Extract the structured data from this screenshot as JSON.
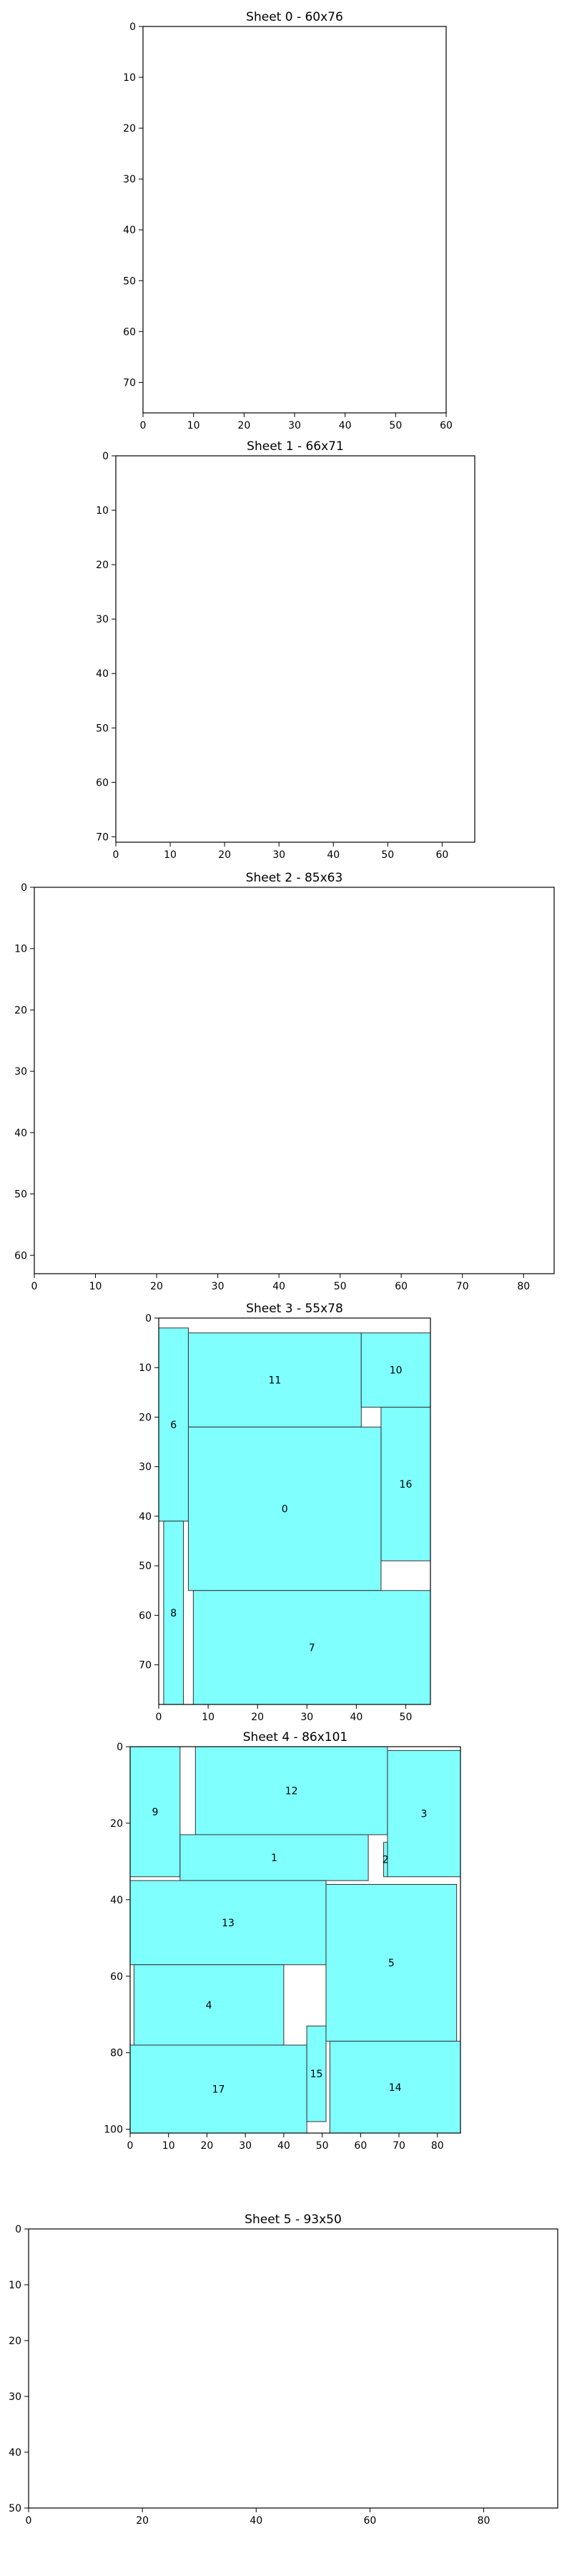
{
  "colors": {
    "piece_fill": "#80ffff",
    "piece_stroke": "#333333",
    "axes": "#000000",
    "background": "#ffffff"
  },
  "chart_data": [
    {
      "type": "rectangles",
      "title": "Sheet 0 - 60x76",
      "width": 60,
      "height": 76,
      "xticks": [
        0,
        10,
        20,
        30,
        40,
        50,
        60
      ],
      "yticks": [
        0,
        10,
        20,
        30,
        40,
        50,
        60,
        70
      ],
      "pieces": []
    },
    {
      "type": "rectangles",
      "title": "Sheet 1 - 66x71",
      "width": 66,
      "height": 71,
      "xticks": [
        0,
        10,
        20,
        30,
        40,
        50,
        60
      ],
      "yticks": [
        0,
        10,
        20,
        30,
        40,
        50,
        60,
        70
      ],
      "pieces": []
    },
    {
      "type": "rectangles",
      "title": "Sheet 2 - 85x63",
      "width": 85,
      "height": 63,
      "xticks": [
        0,
        10,
        20,
        30,
        40,
        50,
        60,
        70,
        80
      ],
      "yticks": [
        0,
        10,
        20,
        30,
        40,
        50,
        60
      ],
      "pieces": []
    },
    {
      "type": "rectangles",
      "title": "Sheet 3 - 55x78",
      "width": 55,
      "height": 78,
      "xticks": [
        0,
        10,
        20,
        30,
        40,
        50
      ],
      "yticks": [
        0,
        10,
        20,
        30,
        40,
        50,
        60,
        70
      ],
      "pieces": [
        {
          "id": "6",
          "x": 0,
          "y": 2,
          "w": 6,
          "h": 39
        },
        {
          "id": "11",
          "x": 6,
          "y": 3,
          "w": 35,
          "h": 19
        },
        {
          "id": "10",
          "x": 41,
          "y": 3,
          "w": 14,
          "h": 15
        },
        {
          "id": "16",
          "x": 45,
          "y": 18,
          "w": 10,
          "h": 31
        },
        {
          "id": "0",
          "x": 6,
          "y": 22,
          "w": 39,
          "h": 33
        },
        {
          "id": "8",
          "x": 1,
          "y": 41,
          "w": 4,
          "h": 37
        },
        {
          "id": "7",
          "x": 7,
          "y": 55,
          "w": 48,
          "h": 23
        }
      ]
    },
    {
      "type": "rectangles",
      "title": "Sheet 4 - 86x101",
      "width": 86,
      "height": 101,
      "xticks": [
        0,
        10,
        20,
        30,
        40,
        50,
        60,
        70,
        80
      ],
      "yticks": [
        0,
        20,
        40,
        60,
        80,
        100
      ],
      "pieces": [
        {
          "id": "9",
          "x": 0,
          "y": 0,
          "w": 13,
          "h": 34
        },
        {
          "id": "12",
          "x": 17,
          "y": 0,
          "w": 50,
          "h": 23
        },
        {
          "id": "3",
          "x": 67,
          "y": 1,
          "w": 19,
          "h": 33
        },
        {
          "id": "1",
          "x": 13,
          "y": 23,
          "w": 49,
          "h": 12
        },
        {
          "id": "2",
          "x": 66,
          "y": 25,
          "w": 1,
          "h": 9
        },
        {
          "id": "13",
          "x": 0,
          "y": 35,
          "w": 51,
          "h": 22
        },
        {
          "id": "5",
          "x": 51,
          "y": 36,
          "w": 34,
          "h": 41
        },
        {
          "id": "4",
          "x": 1,
          "y": 57,
          "w": 39,
          "h": 21
        },
        {
          "id": "17",
          "x": 0,
          "y": 78,
          "w": 46,
          "h": 23
        },
        {
          "id": "15",
          "x": 46,
          "y": 73,
          "w": 5,
          "h": 25
        },
        {
          "id": "14",
          "x": 52,
          "y": 77,
          "w": 34,
          "h": 24
        }
      ]
    },
    {
      "type": "rectangles",
      "title": "Sheet 5 - 93x50",
      "width": 93,
      "height": 50,
      "xticks": [
        0,
        20,
        40,
        60,
        80
      ],
      "yticks": [
        0,
        10,
        20,
        30,
        40,
        50
      ],
      "pieces": []
    }
  ]
}
